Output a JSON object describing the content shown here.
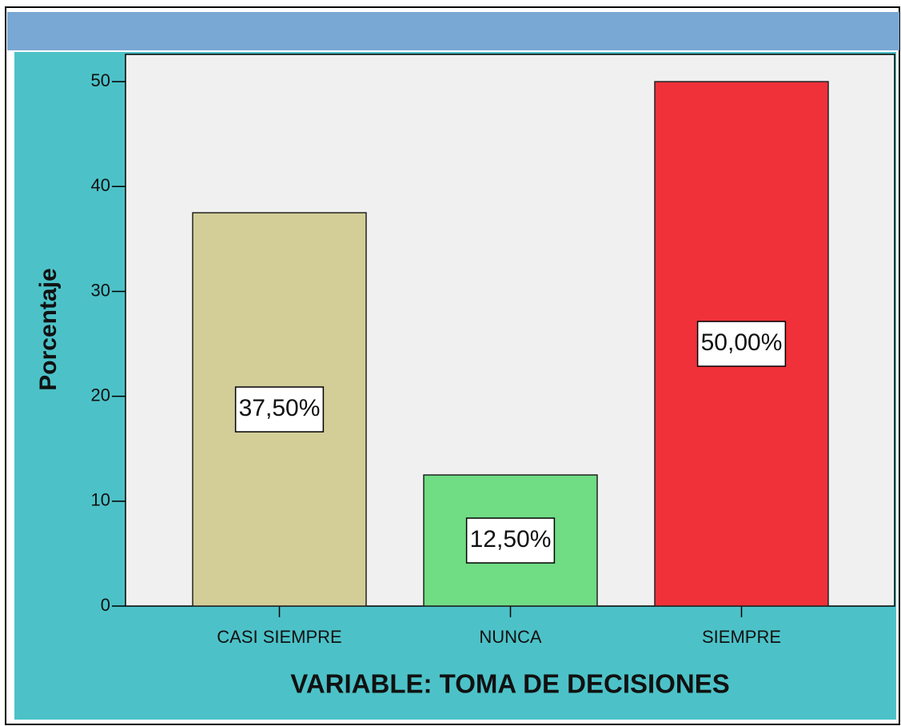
{
  "chart_data": {
    "type": "bar",
    "x_label": "VARIABLE: TOMA DE DECISIONES",
    "y_label": "Porcentaje",
    "categories": [
      "CASI SIEMPRE",
      "NUNCA",
      "SIEMPRE"
    ],
    "values": [
      37.5,
      12.5,
      50
    ],
    "value_labels": [
      "37,50%",
      "12,50%",
      "50,00%"
    ],
    "colors": [
      "#d3ce98",
      "#70dc84",
      "#f0313a"
    ],
    "ylim": [
      0,
      52.6
    ],
    "yticks": [
      0,
      10,
      20,
      30,
      40,
      50
    ],
    "grid": false
  }
}
